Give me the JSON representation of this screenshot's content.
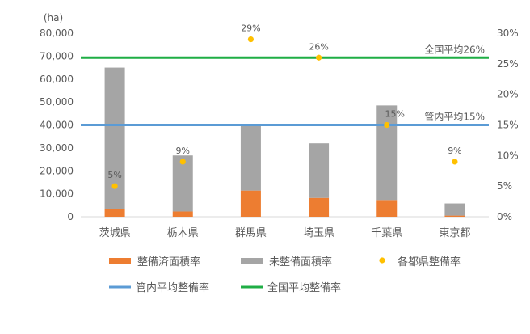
{
  "chart_data": {
    "type": "bar",
    "stacked": true,
    "categories": [
      "茨城県",
      "栃木県",
      "群馬県",
      "埼玉県",
      "千葉県",
      "東京都"
    ],
    "y_left_label": "(ha)",
    "y_left_range": [
      0,
      80000
    ],
    "y_left_ticks": [
      "0",
      "10,000",
      "20,000",
      "30,000",
      "40,000",
      "50,000",
      "60,000",
      "70,000",
      "80,000"
    ],
    "y_right_range": [
      0,
      30
    ],
    "y_right_ticks": [
      "0%",
      "5%",
      "10%",
      "15%",
      "20%",
      "25%",
      "30%"
    ],
    "series": [
      {
        "name": "整備済面積率",
        "kind": "bar",
        "axis": "left",
        "color": "#ED7D31",
        "values": [
          3300,
          2300,
          11400,
          8200,
          7300,
          500
        ]
      },
      {
        "name": "未整備面積率",
        "kind": "bar",
        "axis": "left",
        "color": "#A5A5A5",
        "values": [
          61700,
          24400,
          28600,
          23800,
          41200,
          5300
        ]
      },
      {
        "name": "各都県整備率",
        "kind": "scatter",
        "axis": "right",
        "color": "#FFC000",
        "values": [
          5,
          9,
          29,
          26,
          15,
          9
        ],
        "labels": [
          "5%",
          "9%",
          "29%",
          "26%",
          "15%",
          "9%"
        ]
      }
    ],
    "reference_lines": [
      {
        "name": "管内平均整備率",
        "axis": "right",
        "value": 15,
        "color": "#5B9BD5",
        "label": "管内平均15%"
      },
      {
        "name": "全国平均整備率",
        "axis": "right",
        "value": 26,
        "color": "#1FAE45",
        "label": "全国平均26%"
      }
    ],
    "legend_position": "bottom",
    "grid": false
  }
}
